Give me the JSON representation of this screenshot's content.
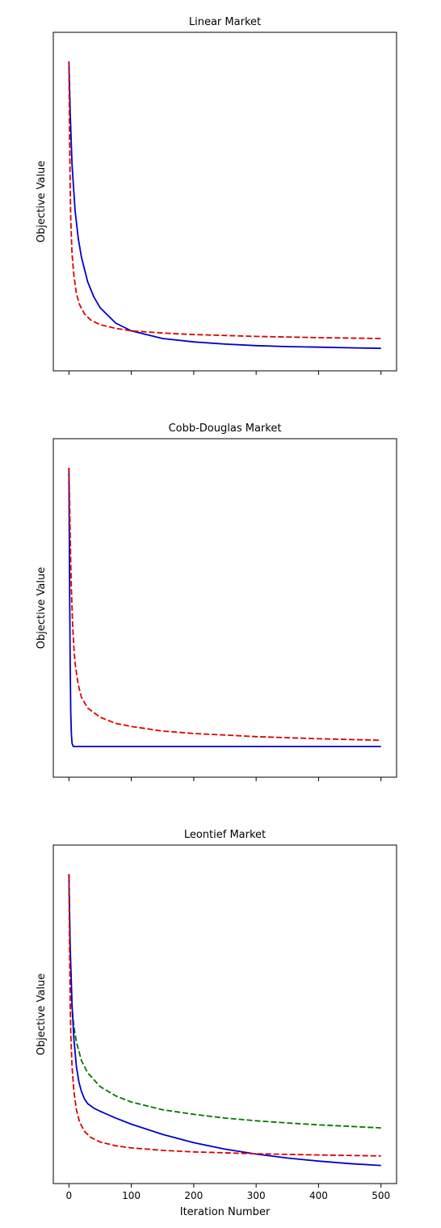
{
  "chart_data": [
    {
      "type": "line",
      "title": "Linear Market",
      "ylabel": "Objective Value",
      "xlabel": "",
      "xlim": [
        -25,
        525
      ],
      "ylim": [
        0,
        1
      ],
      "xticks": [
        0,
        100,
        200,
        300,
        400,
        500
      ],
      "show_xtick_labels": false,
      "grid": false,
      "series": [
        {
          "color": "#0000cc",
          "dash": "solid",
          "x": [
            0,
            2,
            5,
            10,
            15,
            20,
            30,
            40,
            50,
            75,
            100,
            150,
            200,
            250,
            300,
            350,
            400,
            450,
            500
          ],
          "values": [
            0.955,
            0.79,
            0.62,
            0.47,
            0.38,
            0.32,
            0.24,
            0.19,
            0.155,
            0.105,
            0.08,
            0.055,
            0.044,
            0.037,
            0.032,
            0.029,
            0.027,
            0.025,
            0.023
          ]
        },
        {
          "color": "#dd0000",
          "dash": "dashed",
          "x": [
            0,
            1,
            2,
            3,
            5,
            8,
            12,
            17,
            25,
            35,
            50,
            75,
            100,
            150,
            200,
            300,
            400,
            500
          ],
          "values": [
            0.955,
            0.72,
            0.55,
            0.44,
            0.33,
            0.26,
            0.2,
            0.165,
            0.135,
            0.115,
            0.1,
            0.088,
            0.08,
            0.073,
            0.068,
            0.062,
            0.058,
            0.055
          ]
        }
      ]
    },
    {
      "type": "line",
      "title": "Cobb-Douglas Market",
      "ylabel": "Objective Value",
      "xlabel": "",
      "xlim": [
        -25,
        525
      ],
      "ylim": [
        0,
        1
      ],
      "xticks": [
        0,
        100,
        200,
        300,
        400,
        500
      ],
      "show_xtick_labels": false,
      "grid": false,
      "series": [
        {
          "color": "#0000cc",
          "dash": "solid",
          "x": [
            0,
            1,
            2,
            3,
            4,
            5,
            7,
            10,
            15,
            20,
            50,
            100,
            200,
            300,
            400,
            500
          ],
          "values": [
            0.955,
            0.6,
            0.32,
            0.16,
            0.09,
            0.06,
            0.05,
            0.05,
            0.05,
            0.05,
            0.05,
            0.05,
            0.05,
            0.05,
            0.05,
            0.05
          ]
        },
        {
          "color": "#dd0000",
          "dash": "dashed",
          "x": [
            0,
            1,
            2,
            3,
            4,
            6,
            8,
            10,
            15,
            20,
            30,
            50,
            75,
            100,
            150,
            200,
            300,
            400,
            500
          ],
          "values": [
            0.955,
            0.86,
            0.74,
            0.64,
            0.56,
            0.44,
            0.37,
            0.32,
            0.25,
            0.21,
            0.175,
            0.145,
            0.125,
            0.115,
            0.1,
            0.092,
            0.082,
            0.075,
            0.07
          ]
        }
      ]
    },
    {
      "type": "line",
      "title": "Leontief Market",
      "ylabel": "Objective Value",
      "xlabel": "Iteration Number",
      "xlim": [
        -25,
        525
      ],
      "ylim": [
        0,
        1
      ],
      "xticks": [
        0,
        100,
        200,
        300,
        400,
        500
      ],
      "show_xtick_labels": true,
      "grid": false,
      "series": [
        {
          "color": "#007700",
          "dash": "dashed",
          "x": [
            0,
            2,
            5,
            8,
            12,
            20,
            30,
            50,
            75,
            100,
            150,
            200,
            250,
            300,
            350,
            400,
            450,
            500
          ],
          "values": [
            0.955,
            0.7,
            0.52,
            0.46,
            0.41,
            0.35,
            0.31,
            0.265,
            0.235,
            0.215,
            0.19,
            0.175,
            0.163,
            0.154,
            0.147,
            0.141,
            0.136,
            0.131
          ]
        },
        {
          "color": "#0000cc",
          "dash": "solid",
          "x": [
            0,
            2,
            5,
            8,
            12,
            16,
            20,
            25,
            30,
            40,
            50,
            75,
            100,
            150,
            200,
            250,
            300,
            350,
            400,
            450,
            500
          ],
          "values": [
            0.955,
            0.72,
            0.53,
            0.42,
            0.33,
            0.28,
            0.25,
            0.225,
            0.21,
            0.195,
            0.185,
            0.163,
            0.143,
            0.11,
            0.083,
            0.062,
            0.046,
            0.033,
            0.023,
            0.015,
            0.009
          ]
        },
        {
          "color": "#dd0000",
          "dash": "dashed",
          "x": [
            0,
            1,
            2,
            3,
            5,
            8,
            12,
            17,
            25,
            35,
            50,
            75,
            100,
            150,
            200,
            300,
            400,
            500
          ],
          "values": [
            0.955,
            0.72,
            0.55,
            0.44,
            0.33,
            0.25,
            0.19,
            0.15,
            0.12,
            0.1,
            0.085,
            0.073,
            0.066,
            0.058,
            0.053,
            0.047,
            0.043,
            0.04
          ]
        }
      ]
    }
  ]
}
